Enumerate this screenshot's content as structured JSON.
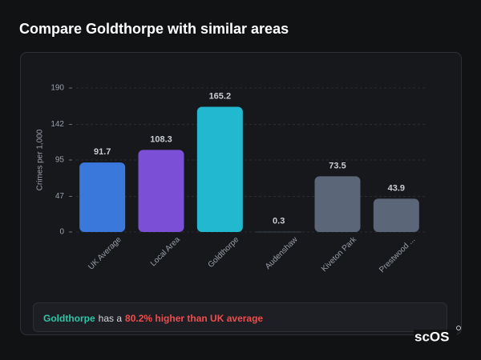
{
  "chart_data": {
    "type": "bar",
    "title": "Compare Goldthorpe with similar areas",
    "ylabel": "Crimes per 1,000",
    "categories": [
      "UK Average",
      "Local Area",
      "Goldthorpe",
      "Audenshaw",
      "Kiveton Park",
      "Prestwood ..."
    ],
    "values": [
      91.7,
      108.3,
      165.2,
      0.3,
      73.5,
      43.9
    ],
    "colors": [
      "#3a78db",
      "#7b4fd6",
      "#22b8cf",
      "#5b6678",
      "#5b6678",
      "#5b6678"
    ],
    "ylim": [
      0,
      190
    ],
    "yticks": [
      0,
      47,
      95,
      142,
      190
    ],
    "grid": true
  },
  "summary": {
    "area": "Goldthorpe",
    "text": "has a",
    "highlight": "80.2% higher than UK average"
  },
  "logo": "scOS"
}
